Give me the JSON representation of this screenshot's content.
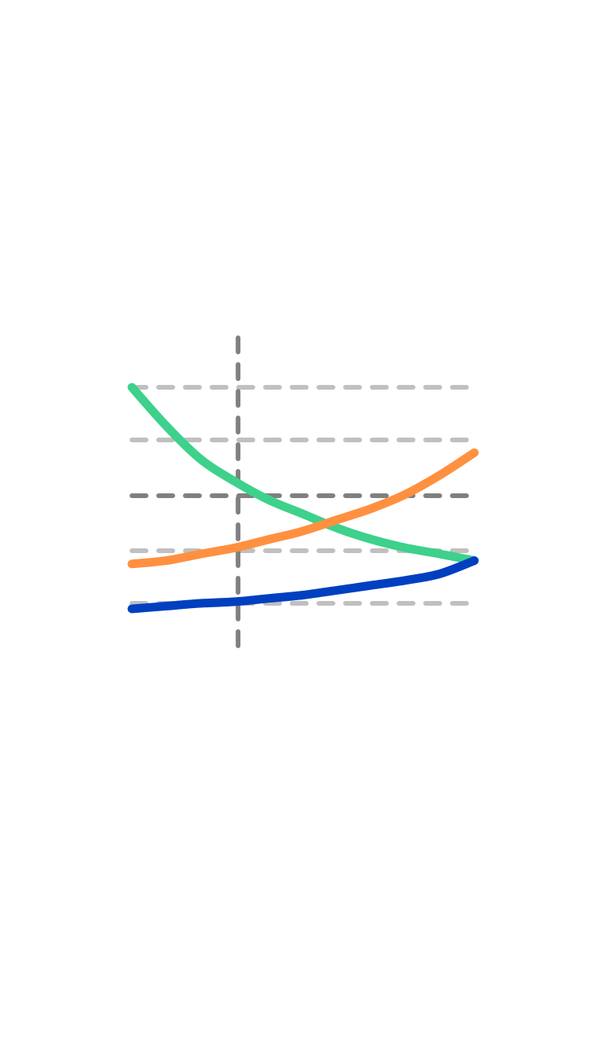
{
  "chart_data": {
    "type": "line",
    "title": "",
    "xlabel": "",
    "ylabel": "",
    "xlim": [
      0,
      1
    ],
    "ylim": [
      0,
      1
    ],
    "grid": true,
    "legend": "none",
    "x": [
      0,
      0.1,
      0.2,
      0.3,
      0.4,
      0.5,
      0.6,
      0.7,
      0.8,
      0.9,
      1.0
    ],
    "gridlines_y": [
      0.9,
      0.75,
      0.38,
      0.22
    ],
    "reference_lines": {
      "horizontal_y": 0.575,
      "vertical_x": 0.31
    },
    "series": [
      {
        "color": "#3dd18c",
        "values": [
          0.9,
          0.79,
          0.69,
          0.62,
          0.56,
          0.51,
          0.46,
          0.42,
          0.39,
          0.37,
          0.35
        ]
      },
      {
        "color": "#ff9040",
        "values": [
          0.34,
          0.35,
          0.37,
          0.39,
          0.42,
          0.45,
          0.49,
          0.53,
          0.58,
          0.64,
          0.71
        ]
      },
      {
        "color": "#0040c0",
        "values": [
          0.2,
          0.21,
          0.22,
          0.225,
          0.235,
          0.245,
          0.26,
          0.275,
          0.29,
          0.31,
          0.35
        ]
      }
    ],
    "colors": {
      "grid": "#c0c0c0",
      "reference": "#808080"
    }
  }
}
